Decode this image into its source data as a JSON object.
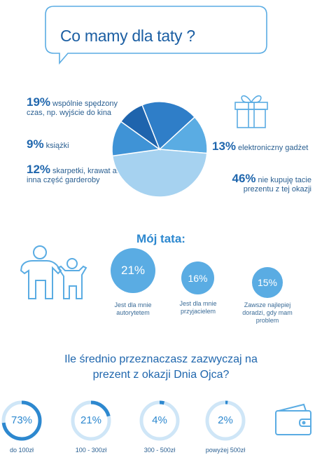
{
  "title": "Co mamy dla taty ?",
  "chart_data": [
    {
      "type": "pie",
      "slices": [
        {
          "value": 19,
          "pct_label": "19%",
          "label": "wspólnie spędzony czas, np. wyjście do kina",
          "color": "#2f7ec8"
        },
        {
          "value": 9,
          "pct_label": "9%",
          "label": "książki",
          "color": "#1f64ad"
        },
        {
          "value": 12,
          "pct_label": "12%",
          "label": "skarpetki, krawat albo inna część garderoby",
          "color": "#3f93d6"
        },
        {
          "value": 13,
          "pct_label": "13%",
          "label": "elektroniczny gadżet",
          "color": "#5aace3"
        },
        {
          "value": 46,
          "pct_label": "46%",
          "label": "nie kupuję tacie prezentu z tej okazji",
          "color": "#a6d2f0"
        }
      ]
    },
    {
      "type": "bubble",
      "title": "Mój tata:",
      "items": [
        {
          "value": 21,
          "pct_label": "21%",
          "label": "Jest dla mnie autorytetem"
        },
        {
          "value": 16,
          "pct_label": "16%",
          "label": "Jest dla mnie przyjacielem"
        },
        {
          "value": 15,
          "pct_label": "15%",
          "label": "Zawsze najlepiej doradzi, gdy mam problem"
        }
      ]
    },
    {
      "type": "donut",
      "title": "Ile średnio przeznaczasz zazwyczaj na prezent z okazji Dnia Ojca?",
      "items": [
        {
          "value": 73,
          "pct_label": "73%",
          "label": "do 100zł"
        },
        {
          "value": 21,
          "pct_label": "21%",
          "label": "100 - 300zł"
        },
        {
          "value": 4,
          "pct_label": "4%",
          "label": "300 - 500zł"
        },
        {
          "value": 2,
          "pct_label": "2%",
          "label": "powyżej 500zł"
        }
      ]
    }
  ],
  "colors": {
    "accent": "#2d88cf",
    "dark": "#1f66ad",
    "light": "#a6d2f0",
    "track": "#cfe6f7"
  },
  "icons": [
    "gift-icon",
    "family-icon",
    "wallet-icon"
  ]
}
